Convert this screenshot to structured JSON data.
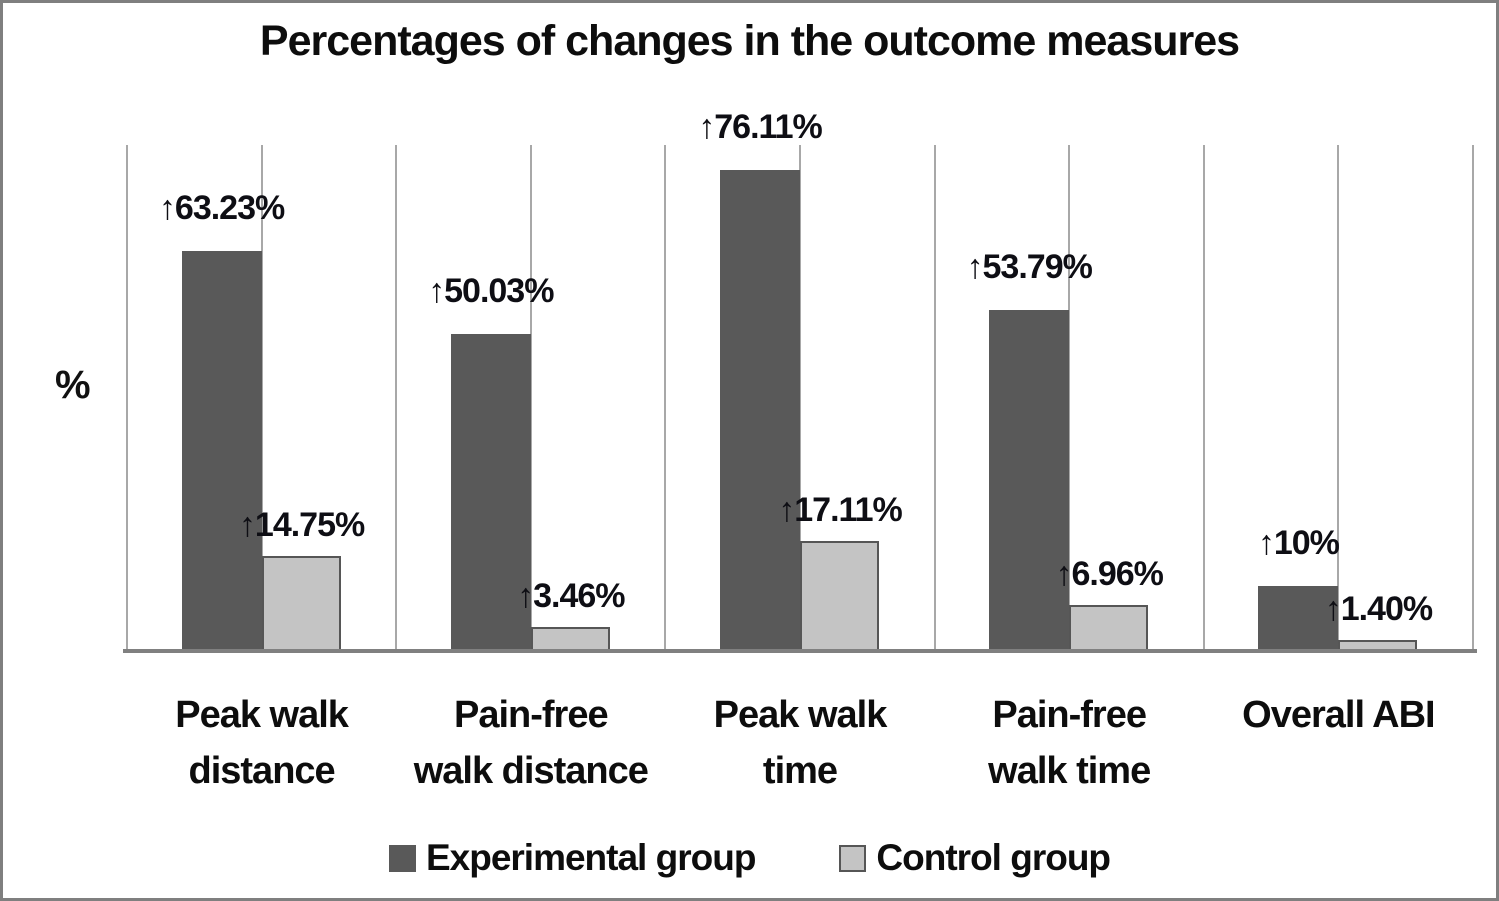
{
  "title": "Percentages of changes in the outcome measures",
  "y_axis_label": "%",
  "legend": {
    "items": [
      {
        "label": "Experimental group",
        "color": "#595959"
      },
      {
        "label": "Control group",
        "color": "#c4c4c4",
        "border_color": "#565656"
      }
    ]
  },
  "chart_data": {
    "type": "bar",
    "title": "Percentages of changes in the outcome measures",
    "xlabel": "",
    "ylabel": "%",
    "ylim": [
      0,
      80
    ],
    "grid": "vertical-only",
    "legend_position": "bottom",
    "colors": {
      "experimental": "#595959",
      "control": "#c4c4c4",
      "control_border": "#565656",
      "gridline": "#a8a8a8",
      "axis_line": "#808080",
      "text": "#0d0d0d"
    },
    "categories": [
      {
        "label": "Peak walk distance",
        "lines": [
          "Peak walk",
          "distance"
        ]
      },
      {
        "label": "Pain-free walk distance",
        "lines": [
          "Pain-free",
          "walk distance"
        ]
      },
      {
        "label": "Peak walk time",
        "lines": [
          "Peak walk",
          "time"
        ]
      },
      {
        "label": "Pain-free walk time",
        "lines": [
          "Pain-free",
          "walk time"
        ]
      },
      {
        "label": "Overall ABI",
        "lines": [
          "Overall ABI"
        ]
      }
    ],
    "series": [
      {
        "name": "Experimental group",
        "role": "experimental",
        "values": [
          63.23,
          50.03,
          76.11,
          53.79,
          10
        ],
        "data_labels": [
          "↑63.23%",
          "↑50.03%",
          "↑76.11%",
          "↑53.79%",
          "↑10%"
        ]
      },
      {
        "name": "Control group",
        "role": "control",
        "values": [
          14.75,
          3.46,
          17.11,
          6.96,
          1.4
        ],
        "data_labels": [
          "↑14.75%",
          "↑3.46%",
          "↑17.11%",
          "↑6.96%",
          "↑1.40%"
        ]
      }
    ]
  }
}
